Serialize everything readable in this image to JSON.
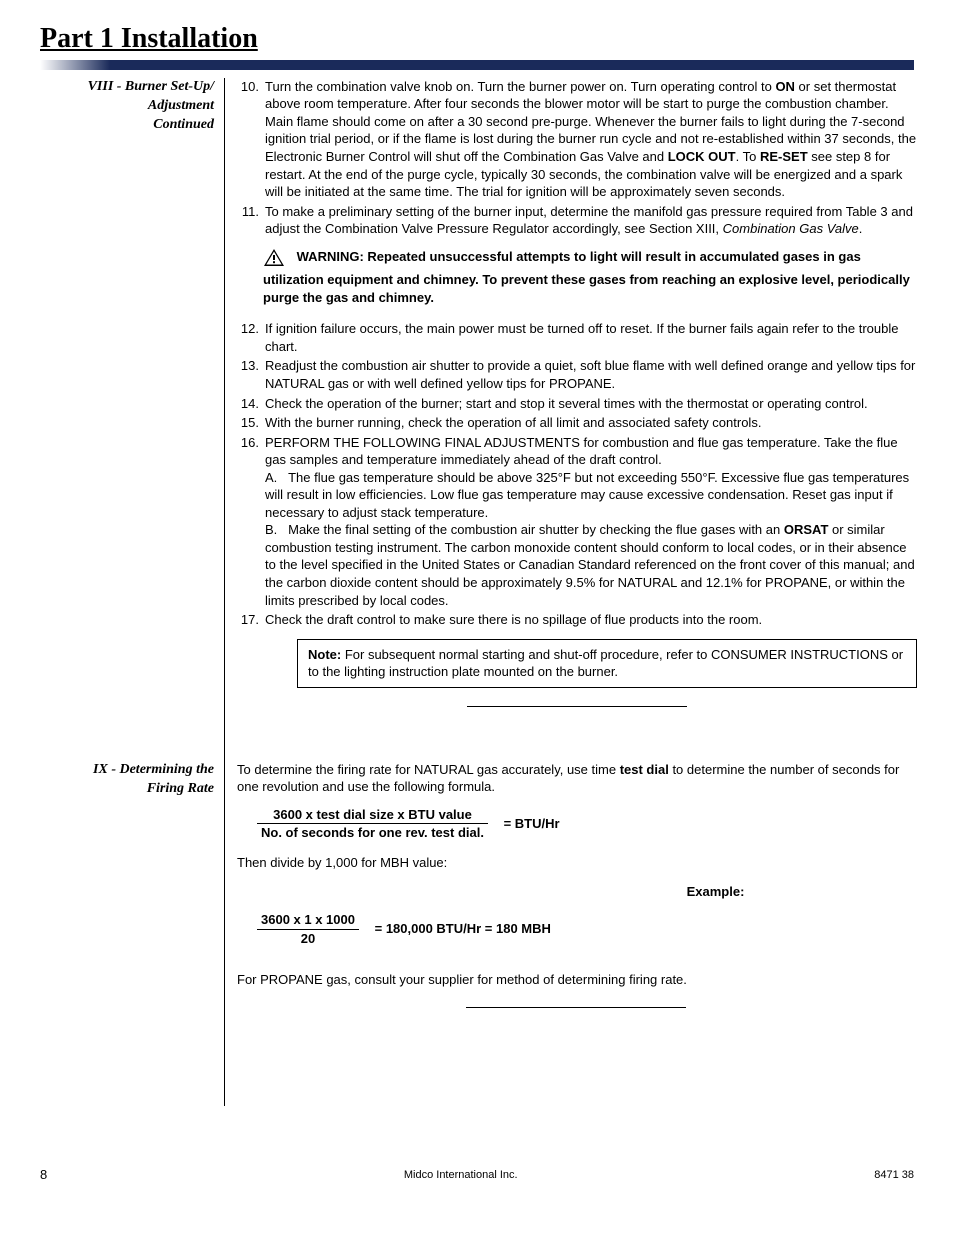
{
  "page_title": "Part 1 Installation",
  "section_viii": {
    "heading": "VIII - Burner Set-Up/ Adjustment Continued",
    "items": [
      {
        "num": "10.",
        "html": "Turn the combination valve knob on. Turn the burner power on. Turn operating control to <b>ON</b> or set thermostat above room temperature.  After four seconds the blower motor will be start to purge the combustion chamber. Main flame should come on after a 30 second pre-purge. Whenever the burner fails to light during the 7-second ignition trial period, or if the flame is lost during the burner run cycle and not re-established within 37 seconds, the Electronic Burner Control will shut off the Combination Gas Valve and <b>LOCK OUT</b>. To <b>RE-SET</b> see step 8 for restart. At the end of the purge cycle, typically 30 seconds, the combination valve will be energized and a spark will be initiated at the same time. The trial for ignition will be approximately seven seconds."
      },
      {
        "num": "11.",
        "html": "To make a preliminary setting of the burner input, determine the manifold gas pressure required from Table 3 and adjust the Combination Valve Pressure Regulator accordingly, see Section XIII, <i>Combination Gas Valve</i>."
      }
    ],
    "warning": "WARNING: Repeated unsuccessful attempts to light will result in accumulated gases in gas utilization equipment and chimney. To prevent these gases from reaching an explosive level, periodically purge the gas and chimney.",
    "items2": [
      {
        "num": "12.",
        "html": "If ignition failure occurs, the main power must be  turned off to reset. If the burner fails again refer to the  trouble chart."
      },
      {
        "num": "13.",
        "html": "Readjust the combustion air shutter to provide a quiet, soft blue flame with well defined orange and yellow tips for NATURAL gas or with well defined yellow tips for PROPANE."
      },
      {
        "num": "14.",
        "html": "Check the operation of the burner; start and stop it  several times with the thermostat or operating control."
      },
      {
        "num": "15.",
        "html": "With the burner running, check the operation of all limit and associated safety controls."
      },
      {
        "num": "16.",
        "html": "PERFORM THE FOLLOWING FINAL ADJUSTMENTS for combustion and flue gas temperature. Take the flue gas samples and temperature immediately ahead of the draft control.<br>A.&nbsp;&nbsp;&nbsp;The flue gas temperature should be above 325°F but not exceeding 550°F. Excessive flue gas temperatures will result in low efficiencies. Low flue gas temperature may cause excessive condensation. Reset gas input if necessary to adjust stack temperature.<br>B.&nbsp;&nbsp;&nbsp;Make the final setting of the combustion air shutter by checking the flue gases with an <b>ORSAT</b> or similar combustion testing instrument. The carbon monoxide content should conform to local codes, or in their absence to the level specified in the United States or Canadian Standard referenced on the front cover of this manual; and the carbon dioxide content should be approximately 9.5% for NATURAL and 12.1% for  PROPANE, or within the limits prescribed by local codes."
      },
      {
        "num": "17.",
        "html": "Check the draft control to make sure there is no spillage of flue products into the room."
      }
    ],
    "note": "<b>Note:</b> For subsequent normal starting and shut-off procedure, refer to CONSUMER INSTRUCTIONS or to the lighting instruction plate mounted on the burner."
  },
  "section_ix": {
    "heading": "IX - Determining the Firing Rate",
    "intro": "To determine the firing rate for NATURAL gas accurately, use time <b>test dial</b> to determine the number of seconds for one revolution and use the following formula.",
    "formula": {
      "num": "3600 x test dial size x BTU value",
      "den": "No. of seconds for one rev. test dial.",
      "eq": "= BTU/Hr"
    },
    "then": "Then divide by 1,000 for MBH value:",
    "example_label": "Example:",
    "example": {
      "num": "3600 x 1 x 1000",
      "den": "20",
      "eq": "= 180,000 BTU/Hr  = 180 MBH"
    },
    "propane": "For PROPANE gas, consult your supplier for method of determining firing rate."
  },
  "footer": {
    "page": "8",
    "company": "Midco International Inc.",
    "doc": "8471 38"
  }
}
